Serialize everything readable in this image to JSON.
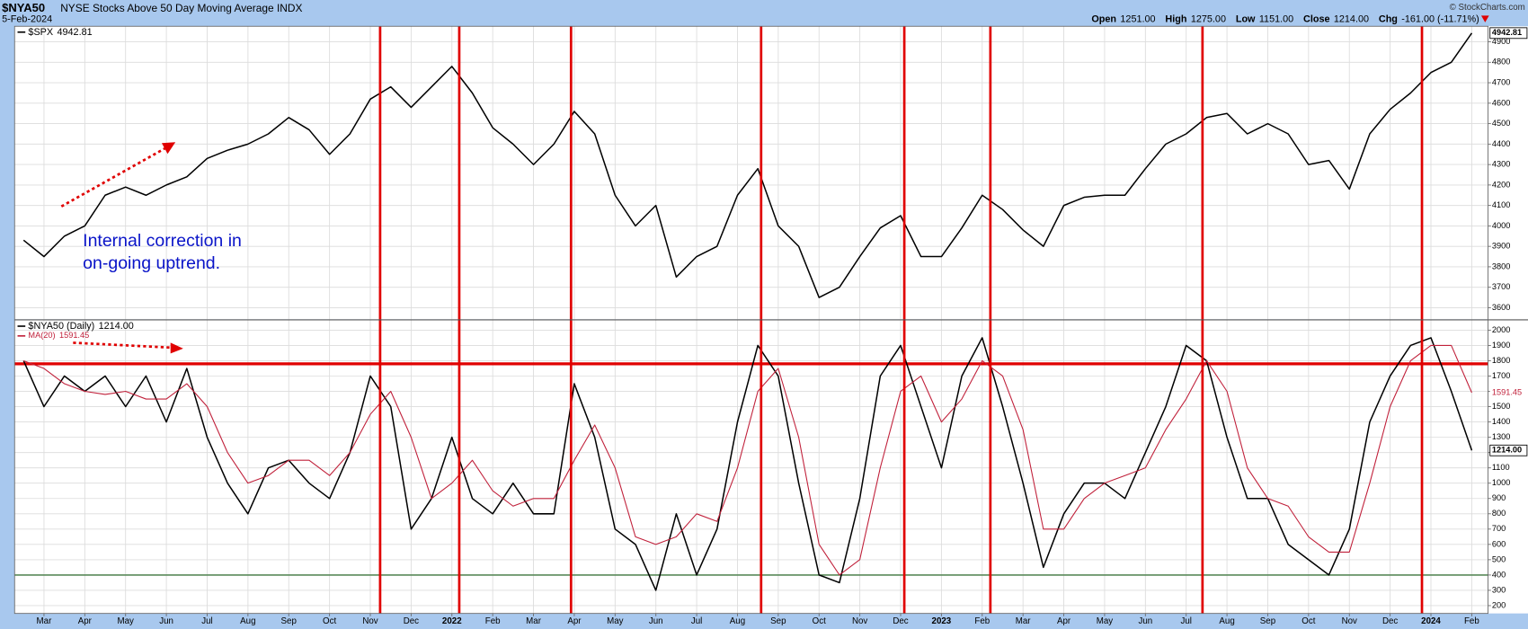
{
  "header": {
    "symbol": "$NYA50",
    "description": "NYSE Stocks Above 50 Day Moving Average INDX",
    "date": "5-Feb-2024",
    "credit": "© StockCharts.com",
    "quote": [
      {
        "label": "Open",
        "value": "1251.00"
      },
      {
        "label": "High",
        "value": "1275.00"
      },
      {
        "label": "Low",
        "value": "1151.00"
      },
      {
        "label": "Close",
        "value": "1214.00"
      },
      {
        "label": "Chg",
        "value": "-161.00 (-11.71%)"
      }
    ]
  },
  "annotation": [
    "Internal correction in",
    "on-going uptrend."
  ],
  "vlines": {
    "color": "#e00000",
    "x": [
      10.24,
      12.18,
      14.92,
      19.58,
      23.09,
      25.2,
      30.4,
      35.78
    ]
  },
  "chart_data": [
    {
      "type": "line",
      "grid": true,
      "xlim": [
        1.28,
        37.4
      ],
      "ylim": [
        3543,
        4976
      ],
      "yticks": [
        3600,
        3700,
        3800,
        3900,
        4000,
        4100,
        4200,
        4300,
        4400,
        4500,
        4600,
        4700,
        4800,
        4900
      ],
      "x": [
        1.5,
        2,
        2.5,
        3,
        3.5,
        4,
        4.5,
        5,
        5.5,
        6,
        6.5,
        7,
        7.5,
        8,
        8.5,
        9,
        9.5,
        10,
        10.5,
        11,
        11.5,
        12,
        12.5,
        13,
        13.5,
        14,
        14.5,
        15,
        15.5,
        16,
        16.5,
        17,
        17.5,
        18,
        18.5,
        19,
        19.5,
        20,
        20.5,
        21,
        21.5,
        22,
        22.5,
        23,
        23.5,
        24,
        24.5,
        25,
        25.5,
        26,
        26.5,
        27,
        27.5,
        28,
        28.5,
        29,
        29.5,
        30,
        30.5,
        31,
        31.5,
        32,
        32.5,
        33,
        33.5,
        34,
        34.5,
        35,
        35.5,
        36,
        36.5,
        37
      ],
      "series": [
        {
          "name": "$SPX",
          "last_label": "4942.81",
          "color": "#000000",
          "values": [
            3930,
            3850,
            3950,
            4000,
            4150,
            4190,
            4150,
            4200,
            4240,
            4330,
            4370,
            4400,
            4450,
            4530,
            4470,
            4350,
            4450,
            4620,
            4680,
            4580,
            4680,
            4780,
            4650,
            4480,
            4400,
            4300,
            4400,
            4560,
            4450,
            4150,
            4000,
            4100,
            3750,
            3850,
            3900,
            4150,
            4280,
            4000,
            3900,
            3650,
            3700,
            3850,
            3990,
            4050,
            3850,
            3850,
            3990,
            4150,
            4080,
            3980,
            3900,
            4100,
            4140,
            4150,
            4150,
            4280,
            4400,
            4450,
            4530,
            4550,
            4450,
            4500,
            4450,
            4300,
            4320,
            4180,
            4450,
            4570,
            4650,
            4750,
            4800,
            4942.81
          ]
        }
      ]
    },
    {
      "type": "line",
      "grid": true,
      "xlim": [
        1.28,
        37.4
      ],
      "xticks": [
        {
          "value": 2,
          "label": "Mar"
        },
        {
          "value": 3,
          "label": "Apr"
        },
        {
          "value": 4,
          "label": "May"
        },
        {
          "value": 5,
          "label": "Jun"
        },
        {
          "value": 6,
          "label": "Jul"
        },
        {
          "value": 7,
          "label": "Aug"
        },
        {
          "value": 8,
          "label": "Sep"
        },
        {
          "value": 9,
          "label": "Oct"
        },
        {
          "value": 10,
          "label": "Nov"
        },
        {
          "value": 11,
          "label": "Dec"
        },
        {
          "value": 12,
          "label": "2022"
        },
        {
          "value": 13,
          "label": "Feb"
        },
        {
          "value": 14,
          "label": "Mar"
        },
        {
          "value": 15,
          "label": "Apr"
        },
        {
          "value": 16,
          "label": "May"
        },
        {
          "value": 17,
          "label": "Jun"
        },
        {
          "value": 18,
          "label": "Jul"
        },
        {
          "value": 19,
          "label": "Aug"
        },
        {
          "value": 20,
          "label": "Sep"
        },
        {
          "value": 21,
          "label": "Oct"
        },
        {
          "value": 22,
          "label": "Nov"
        },
        {
          "value": 23,
          "label": "Dec"
        },
        {
          "value": 24,
          "label": "2023"
        },
        {
          "value": 25,
          "label": "Feb"
        },
        {
          "value": 26,
          "label": "Mar"
        },
        {
          "value": 27,
          "label": "Apr"
        },
        {
          "value": 28,
          "label": "May"
        },
        {
          "value": 29,
          "label": "Jun"
        },
        {
          "value": 30,
          "label": "Jul"
        },
        {
          "value": 31,
          "label": "Aug"
        },
        {
          "value": 32,
          "label": "Sep"
        },
        {
          "value": 33,
          "label": "Oct"
        },
        {
          "value": 34,
          "label": "Nov"
        },
        {
          "value": 35,
          "label": "Dec"
        },
        {
          "value": 36,
          "label": "2024"
        },
        {
          "value": 37,
          "label": "Feb"
        }
      ],
      "ylim": [
        149,
        2064
      ],
      "yticks": [
        200,
        300,
        400,
        500,
        600,
        700,
        800,
        900,
        1000,
        1100,
        1200,
        1300,
        1400,
        1500,
        1600,
        1700,
        1800,
        1900,
        2000
      ],
      "hlines": [
        {
          "value": 1780,
          "color": "#e00000"
        },
        {
          "value": 400,
          "color": "#5a8a5a"
        }
      ],
      "x": [
        1.5,
        2,
        2.5,
        3,
        3.5,
        4,
        4.5,
        5,
        5.5,
        6,
        6.5,
        7,
        7.5,
        8,
        8.5,
        9,
        9.5,
        10,
        10.5,
        11,
        11.5,
        12,
        12.5,
        13,
        13.5,
        14,
        14.5,
        15,
        15.5,
        16,
        16.5,
        17,
        17.5,
        18,
        18.5,
        19,
        19.5,
        20,
        20.5,
        21,
        21.5,
        22,
        22.5,
        23,
        23.5,
        24,
        24.5,
        25,
        25.5,
        26,
        26.5,
        27,
        27.5,
        28,
        28.5,
        29,
        29.5,
        30,
        30.5,
        31,
        31.5,
        32,
        32.5,
        33,
        33.5,
        34,
        34.5,
        35,
        35.5,
        36,
        36.5,
        37
      ],
      "series": [
        {
          "name": "$NYA50 (Daily)",
          "last_label": "1214.00",
          "color": "#000000",
          "values": [
            1800,
            1500,
            1700,
            1600,
            1700,
            1500,
            1700,
            1400,
            1750,
            1300,
            1000,
            800,
            1100,
            1150,
            1000,
            900,
            1200,
            1700,
            1500,
            700,
            900,
            1300,
            900,
            800,
            1000,
            800,
            800,
            1650,
            1300,
            700,
            600,
            300,
            800,
            400,
            700,
            1400,
            1900,
            1700,
            1000,
            400,
            350,
            900,
            1700,
            1900,
            1500,
            1100,
            1700,
            1950,
            1500,
            1000,
            450,
            800,
            1000,
            1000,
            900,
            1200,
            1500,
            1900,
            1800,
            1300,
            900,
            900,
            600,
            500,
            400,
            700,
            1400,
            1700,
            1900,
            1950,
            1600,
            1214
          ]
        },
        {
          "name": "MA(20)",
          "last_label": "1591.45",
          "color": "#c0203a",
          "values": [
            1800,
            1750,
            1650,
            1600,
            1580,
            1600,
            1550,
            1550,
            1650,
            1500,
            1200,
            1000,
            1050,
            1150,
            1150,
            1050,
            1200,
            1450,
            1600,
            1300,
            900,
            1000,
            1150,
            950,
            850,
            900,
            900,
            1150,
            1380,
            1100,
            650,
            600,
            650,
            800,
            750,
            1100,
            1600,
            1750,
            1300,
            600,
            400,
            500,
            1100,
            1600,
            1700,
            1400,
            1550,
            1800,
            1700,
            1350,
            700,
            700,
            900,
            1000,
            1050,
            1100,
            1350,
            1550,
            1800,
            1600,
            1100,
            900,
            850,
            650,
            550,
            550,
            1000,
            1500,
            1800,
            1900,
            1900,
            1591.45
          ]
        }
      ]
    }
  ]
}
